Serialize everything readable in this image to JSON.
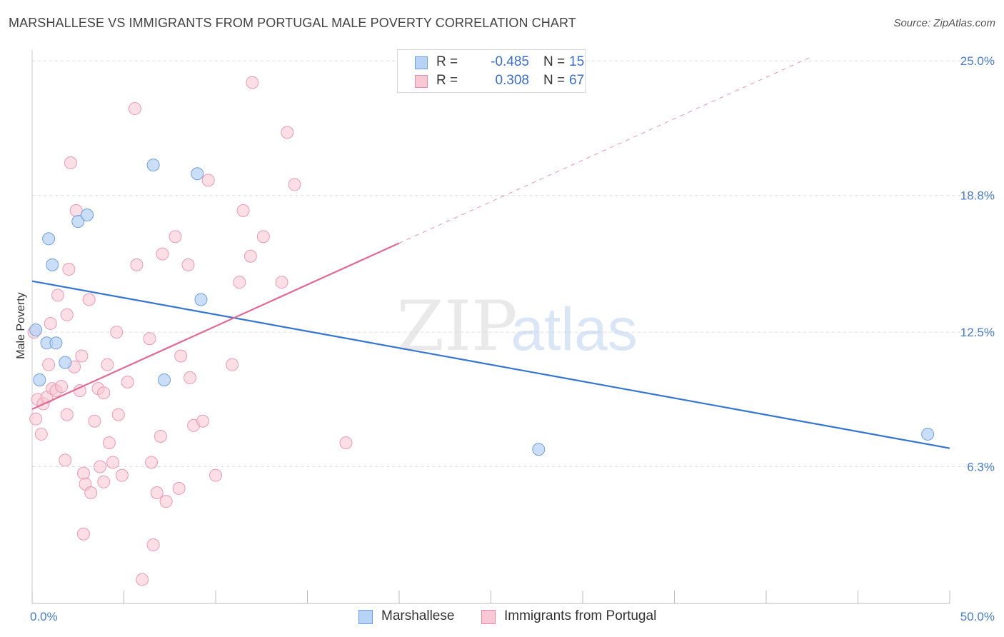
{
  "title": "MARSHALLESE VS IMMIGRANTS FROM PORTUGAL MALE POVERTY CORRELATION CHART",
  "source": "Source: ZipAtlas.com",
  "watermark": {
    "zip": "ZIP",
    "atlas": "atlas"
  },
  "legend": {
    "r_label": "R =",
    "n_label": "N =",
    "series": [
      {
        "name": "Marshallese",
        "r": "-0.485",
        "n": "15",
        "fill": "#b8d3f5",
        "stroke": "#6f9fdc"
      },
      {
        "name": "Immigrants from Portugal",
        "r": "0.308",
        "n": "67",
        "fill": "#f9c8d6",
        "stroke": "#e88aa8"
      }
    ]
  },
  "colors": {
    "blue_line": "#3574d0",
    "pink_line": "#e06a93",
    "blue_point_fill": "#b8d3f5",
    "blue_point_stroke": "#6f9fdc",
    "pink_point_fill": "#f9c8d6",
    "pink_point_stroke": "#eb9ab4",
    "grid": "#dddddd",
    "tick_text": "#4a7cc7"
  },
  "chart_data": {
    "type": "scatter",
    "title": "MARSHALLESE VS IMMIGRANTS FROM PORTUGAL MALE POVERTY CORRELATION CHART",
    "xlabel": "",
    "ylabel": "Male Poverty",
    "xlim": [
      0,
      50
    ],
    "ylim": [
      0,
      25.5
    ],
    "x_tick_labels": [
      {
        "value": 0,
        "label": "0.0%"
      },
      {
        "value": 50,
        "label": "50.0%"
      }
    ],
    "y_tick_labels": [
      {
        "value": 6.3,
        "label": "6.3%"
      },
      {
        "value": 12.5,
        "label": "12.5%"
      },
      {
        "value": 18.8,
        "label": "18.8%"
      },
      {
        "value": 25.0,
        "label": "25.0%"
      }
    ],
    "series": [
      {
        "name": "Marshallese",
        "points": [
          [
            0.2,
            12.6
          ],
          [
            0.4,
            10.3
          ],
          [
            0.8,
            12.0
          ],
          [
            0.9,
            16.8
          ],
          [
            1.1,
            15.6
          ],
          [
            1.3,
            12.0
          ],
          [
            1.8,
            11.1
          ],
          [
            2.5,
            17.6
          ],
          [
            3.0,
            17.9
          ],
          [
            6.6,
            20.2
          ],
          [
            7.2,
            10.3
          ],
          [
            9.0,
            19.8
          ],
          [
            9.2,
            14.0
          ],
          [
            27.6,
            7.1
          ],
          [
            48.8,
            7.8
          ]
        ],
        "trendline": {
          "x0": 0,
          "y0": 14.85,
          "x1": 50,
          "y1": 7.15
        }
      },
      {
        "name": "Immigrants from Portugal",
        "points": [
          [
            0.1,
            12.5
          ],
          [
            0.2,
            8.5
          ],
          [
            0.3,
            9.4
          ],
          [
            0.5,
            7.8
          ],
          [
            0.6,
            9.2
          ],
          [
            0.8,
            9.5
          ],
          [
            0.9,
            11.0
          ],
          [
            1.0,
            12.9
          ],
          [
            1.1,
            9.9
          ],
          [
            1.3,
            9.8
          ],
          [
            1.4,
            14.2
          ],
          [
            1.6,
            10.0
          ],
          [
            1.8,
            6.6
          ],
          [
            1.9,
            13.3
          ],
          [
            1.9,
            8.7
          ],
          [
            2.0,
            15.4
          ],
          [
            2.1,
            20.3
          ],
          [
            2.3,
            10.9
          ],
          [
            2.4,
            18.1
          ],
          [
            2.6,
            9.8
          ],
          [
            2.7,
            11.4
          ],
          [
            2.8,
            6.0
          ],
          [
            2.8,
            3.2
          ],
          [
            2.9,
            5.5
          ],
          [
            3.1,
            14.0
          ],
          [
            3.2,
            5.1
          ],
          [
            3.4,
            8.4
          ],
          [
            3.6,
            9.9
          ],
          [
            3.7,
            6.3
          ],
          [
            3.9,
            9.7
          ],
          [
            3.9,
            5.6
          ],
          [
            4.1,
            11.0
          ],
          [
            4.2,
            7.4
          ],
          [
            4.4,
            6.5
          ],
          [
            4.6,
            12.5
          ],
          [
            4.7,
            8.7
          ],
          [
            4.9,
            5.9
          ],
          [
            5.2,
            10.2
          ],
          [
            5.6,
            22.8
          ],
          [
            5.7,
            15.6
          ],
          [
            6.0,
            1.1
          ],
          [
            6.4,
            12.2
          ],
          [
            6.5,
            6.5
          ],
          [
            6.6,
            2.7
          ],
          [
            6.8,
            5.1
          ],
          [
            7.0,
            7.7
          ],
          [
            7.1,
            16.1
          ],
          [
            7.3,
            4.7
          ],
          [
            7.8,
            16.9
          ],
          [
            8.0,
            5.3
          ],
          [
            8.1,
            11.4
          ],
          [
            8.5,
            15.6
          ],
          [
            8.6,
            10.4
          ],
          [
            8.8,
            8.2
          ],
          [
            9.3,
            8.4
          ],
          [
            9.6,
            19.5
          ],
          [
            10.0,
            5.9
          ],
          [
            10.9,
            11.0
          ],
          [
            11.3,
            14.8
          ],
          [
            11.5,
            18.1
          ],
          [
            11.9,
            16.0
          ],
          [
            12.0,
            24.0
          ],
          [
            12.6,
            16.9
          ],
          [
            13.6,
            14.8
          ],
          [
            13.9,
            21.7
          ],
          [
            14.3,
            19.3
          ],
          [
            17.1,
            7.4
          ]
        ],
        "trendline": {
          "x0": 0,
          "y0": 8.95,
          "x1": 20,
          "y1": 16.6,
          "dashed_to_x": 42.5,
          "dashed_to_y": 25.2
        }
      }
    ],
    "grid": true,
    "legend_position": "top-center"
  }
}
